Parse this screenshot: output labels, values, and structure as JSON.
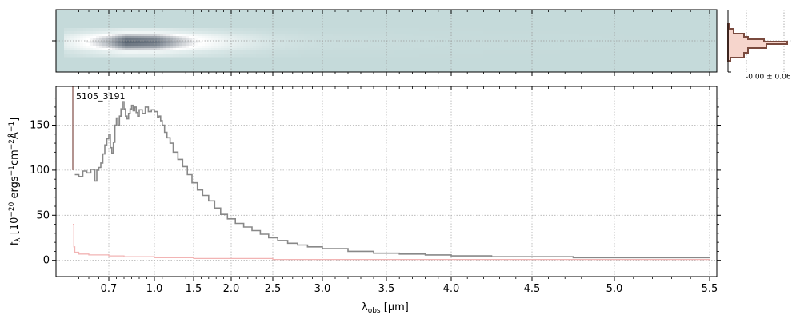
{
  "chart_data": [
    {
      "type": "heatmap",
      "panel": "2d-spectrum",
      "description_rows": "spatial profile centered, trace brightest near 0.8-1.0 um and fading toward red",
      "xlim": [
        0.44,
        5.52
      ],
      "colormap": [
        "#c5dada",
        "#ffffff",
        "#1a2a3c"
      ],
      "grid": true,
      "trace_profile": [
        {
          "x": 0.6,
          "intensity": 0.55
        },
        {
          "x": 0.8,
          "intensity": 0.95
        },
        {
          "x": 1.0,
          "intensity": 0.9
        },
        {
          "x": 1.5,
          "intensity": 0.55
        },
        {
          "x": 2.0,
          "intensity": 0.3
        },
        {
          "x": 2.5,
          "intensity": 0.12
        },
        {
          "x": 3.0,
          "intensity": 0.05
        },
        {
          "x": 4.0,
          "intensity": 0.02
        },
        {
          "x": 5.5,
          "intensity": 0.0
        }
      ]
    },
    {
      "type": "line",
      "panel": "profile",
      "label": "-0.00 ± 0.06",
      "colors": {
        "fill": "#f6d5cc",
        "edge": "#7a4a3e"
      }
    },
    {
      "type": "line",
      "panel": "1d-spectrum",
      "object_label": "5105_3191",
      "xlabel_main": "λ",
      "xlabel_sub": "obs",
      "xlabel_units": " [μm]",
      "ylabel": "f_λ [10^-20 ergs^-1cm^-2Å^-1]",
      "ylim": [
        -18,
        193
      ],
      "xlim": [
        0.44,
        5.52
      ],
      "grid": true,
      "xticks": [
        "0.7",
        "1.0",
        "1.5",
        "2.0",
        "2.5",
        "3.0",
        "3.5",
        "4.0",
        "4.5",
        "5.0",
        "5.5"
      ],
      "yticks": [
        "0",
        "50",
        "100",
        "150"
      ],
      "series": [
        {
          "color": "#888888",
          "points": [
            [
              0.53,
              95
            ],
            [
              0.55,
              93
            ],
            [
              0.57,
              99
            ],
            [
              0.59,
              97
            ],
            [
              0.61,
              101
            ],
            [
              0.63,
              88
            ],
            [
              0.64,
              100
            ],
            [
              0.65,
              103
            ],
            [
              0.66,
              108
            ],
            [
              0.67,
              118
            ],
            [
              0.68,
              128
            ],
            [
              0.69,
              135
            ],
            [
              0.7,
              140
            ],
            [
              0.71,
              125
            ],
            [
              0.72,
              119
            ],
            [
              0.73,
              131
            ],
            [
              0.74,
              150
            ],
            [
              0.75,
              158
            ],
            [
              0.76,
              150
            ],
            [
              0.77,
              160
            ],
            [
              0.78,
              168
            ],
            [
              0.79,
              176
            ],
            [
              0.8,
              168
            ],
            [
              0.81,
              160
            ],
            [
              0.82,
              157
            ],
            [
              0.83,
              163
            ],
            [
              0.84,
              168
            ],
            [
              0.85,
              172
            ],
            [
              0.86,
              166
            ],
            [
              0.87,
              170
            ],
            [
              0.88,
              164
            ],
            [
              0.89,
              160
            ],
            [
              0.9,
              167
            ],
            [
              0.92,
              163
            ],
            [
              0.94,
              170
            ],
            [
              0.96,
              165
            ],
            [
              0.98,
              167
            ],
            [
              1.0,
              165
            ],
            [
              1.02,
              165
            ],
            [
              1.04,
              159
            ],
            [
              1.06,
              160
            ],
            [
              1.08,
              155
            ],
            [
              1.1,
              150
            ],
            [
              1.13,
              142
            ],
            [
              1.16,
              136
            ],
            [
              1.2,
              130
            ],
            [
              1.24,
              120
            ],
            [
              1.3,
              112
            ],
            [
              1.36,
              104
            ],
            [
              1.42,
              95
            ],
            [
              1.48,
              86
            ],
            [
              1.55,
              78
            ],
            [
              1.62,
              72
            ],
            [
              1.7,
              66
            ],
            [
              1.78,
              58
            ],
            [
              1.86,
              51
            ],
            [
              1.95,
              46
            ],
            [
              2.05,
              41
            ],
            [
              2.15,
              37
            ],
            [
              2.25,
              33
            ],
            [
              2.35,
              29
            ],
            [
              2.45,
              25
            ],
            [
              2.55,
              22
            ],
            [
              2.65,
              19
            ],
            [
              2.75,
              17
            ],
            [
              2.85,
              15
            ],
            [
              3.0,
              13
            ],
            [
              3.2,
              10
            ],
            [
              3.4,
              8
            ],
            [
              3.6,
              7
            ],
            [
              3.8,
              6
            ],
            [
              4.0,
              5
            ],
            [
              4.25,
              4
            ],
            [
              4.5,
              4
            ],
            [
              4.75,
              3
            ],
            [
              5.0,
              3
            ],
            [
              5.25,
              3
            ],
            [
              5.5,
              3
            ]
          ]
        },
        {
          "color": "#f2b4b4",
          "points": [
            [
              0.52,
              40
            ],
            [
              0.525,
              15
            ],
            [
              0.53,
              9
            ],
            [
              0.55,
              7
            ],
            [
              0.6,
              6
            ],
            [
              0.7,
              5
            ],
            [
              0.8,
              4
            ],
            [
              1.0,
              3
            ],
            [
              1.5,
              2
            ],
            [
              2.5,
              1
            ],
            [
              3.5,
              1
            ],
            [
              4.5,
              1
            ],
            [
              5.5,
              1
            ]
          ]
        },
        {
          "color": "#8a5a55",
          "points": [
            [
              0.52,
              193
            ],
            [
              0.52,
              100
            ]
          ]
        }
      ]
    }
  ]
}
